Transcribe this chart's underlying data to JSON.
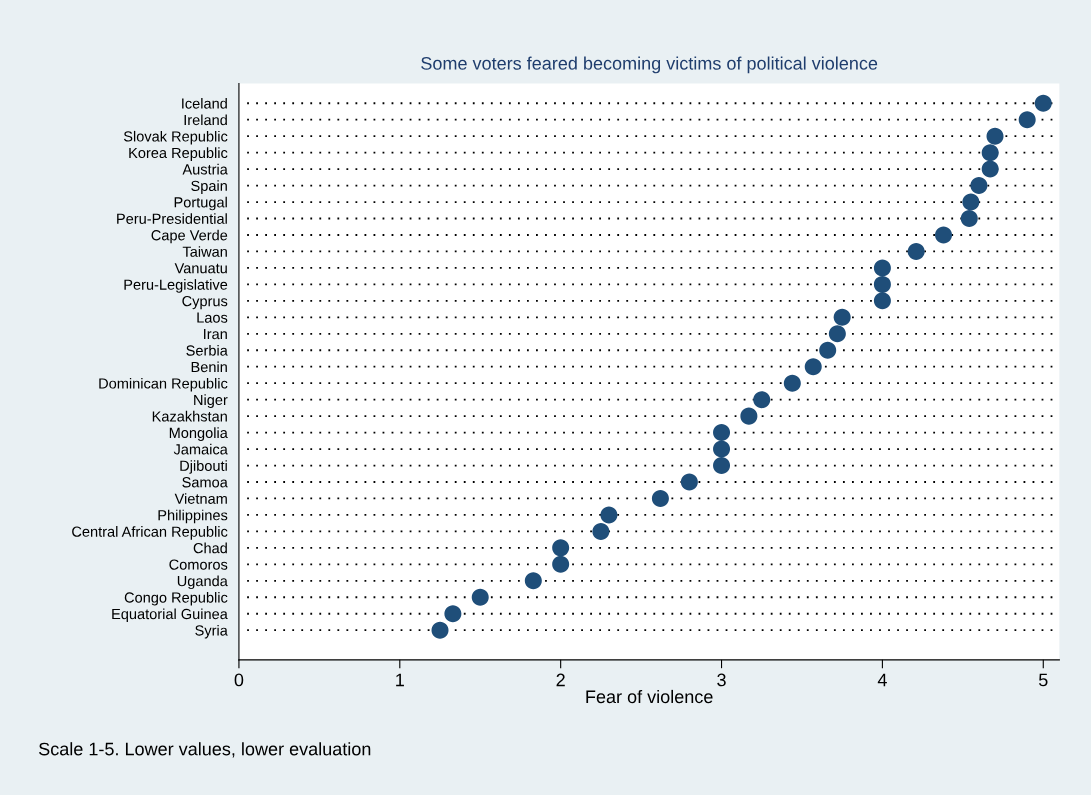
{
  "chart_data": {
    "type": "scatter",
    "orientation": "horizontal",
    "title": "Some voters feared becoming victims of political violence",
    "xlabel": "Fear of violence",
    "annotations": [
      "Scale 1-5. Lower values, lower evaluation"
    ],
    "categories": [
      "Iceland",
      "Ireland",
      "Slovak Republic",
      "Korea Republic",
      "Austria",
      "Spain",
      "Portugal",
      "Peru-Presidential",
      "Cape Verde",
      "Taiwan",
      "Vanuatu",
      "Peru-Legislative",
      "Cyprus",
      "Laos",
      "Iran",
      "Serbia",
      "Benin",
      "Dominican Republic",
      "Niger",
      "Kazakhstan",
      "Mongolia",
      "Jamaica",
      "Djibouti",
      "Samoa",
      "Vietnam",
      "Philippines",
      "Central African Republic",
      "Chad",
      "Comoros",
      "Uganda",
      "Congo Republic",
      "Equatorial Guinea",
      "Syria"
    ],
    "values": [
      5.0,
      4.9,
      4.7,
      4.67,
      4.67,
      4.6,
      4.55,
      4.54,
      4.38,
      4.21,
      4.0,
      4.0,
      4.0,
      3.75,
      3.72,
      3.66,
      3.57,
      3.44,
      3.25,
      3.17,
      3.0,
      3.0,
      3.0,
      2.8,
      2.62,
      2.3,
      2.25,
      2.0,
      2.0,
      1.83,
      1.5,
      1.33,
      1.25
    ],
    "color": "#1f4e79",
    "marker": "circle",
    "xlim": [
      0,
      5.1
    ],
    "xticks": [
      0,
      1,
      2,
      3,
      4,
      5
    ],
    "grid": "y"
  }
}
